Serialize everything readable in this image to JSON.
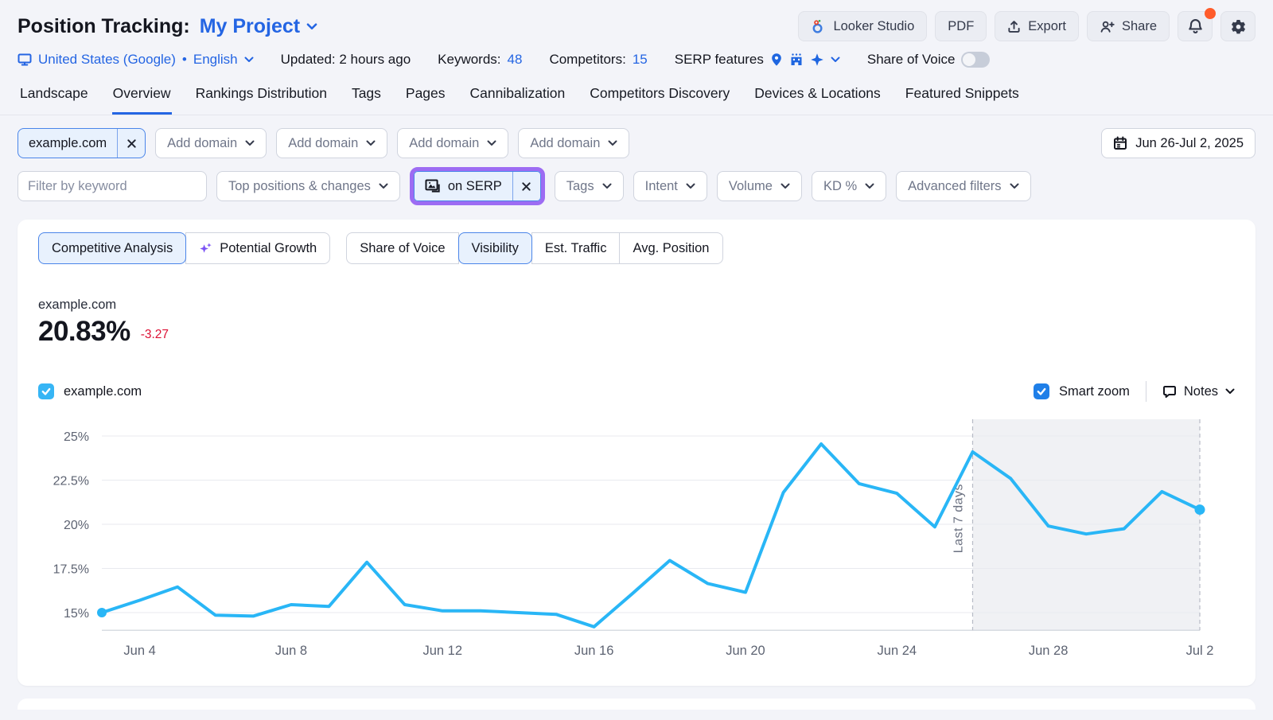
{
  "page": {
    "title": "Position Tracking:",
    "project_name": "My Project"
  },
  "header_actions": {
    "looker_studio": "Looker Studio",
    "pdf": "PDF",
    "export": "Export",
    "share": "Share"
  },
  "meta": {
    "location": "United States (Google)",
    "separator": "•",
    "language": "English",
    "updated_label": "Updated: 2 hours ago",
    "keywords_label": "Keywords:",
    "keywords_value": "48",
    "competitors_label": "Competitors:",
    "competitors_value": "15",
    "serp_features_label": "SERP features",
    "share_of_voice_label": "Share of Voice"
  },
  "tabs": [
    "Landscape",
    "Overview",
    "Rankings Distribution",
    "Tags",
    "Pages",
    "Cannibalization",
    "Competitors Discovery",
    "Devices & Locations",
    "Featured Snippets"
  ],
  "active_tab": "Overview",
  "filters": {
    "domain_chip": "example.com",
    "add_domain_labels": [
      "Add domain",
      "Add domain",
      "Add domain",
      "Add domain"
    ],
    "date_range": "Jun 26-Jul 2, 2025",
    "keyword_placeholder": "Filter by keyword",
    "top_positions": "Top positions & changes",
    "serp_feature_chip": "on SERP",
    "tags": "Tags",
    "intent": "Intent",
    "volume": "Volume",
    "kd": "KD %",
    "advanced": "Advanced filters"
  },
  "views": {
    "competitive_analysis": "Competitive Analysis",
    "potential_growth": "Potential Growth",
    "share_of_voice": "Share of Voice",
    "visibility": "Visibility",
    "est_traffic": "Est. Traffic",
    "avg_position": "Avg. Position",
    "active_group1": "Competitive Analysis",
    "active_group2": "Visibility"
  },
  "metric": {
    "domain": "example.com",
    "value": "20.83%",
    "change": "-3.27"
  },
  "legend": {
    "series_label": "example.com",
    "smart_zoom_label": "Smart zoom",
    "notes_label": "Notes"
  },
  "colors": {
    "accent_blue": "#2465e3",
    "chip_blue_border": "#4a85e9",
    "chip_blue_bg": "#e8f1fd",
    "line_blue": "#29b6f6",
    "negative_red": "#dd1135",
    "highlight_purple": "#9d6cf3",
    "notification_orange": "#ff5c2b",
    "grid_gray": "#e8eaef",
    "axis_text": "#5d6372",
    "last7_fill": "#f0f1f4"
  },
  "icons": {
    "monitor": "device/monitor glyph",
    "chevron_down": "⌄",
    "looker_studio": "looker ring logo",
    "export": "upload arrow",
    "share": "person-plus",
    "bell": "notification bell",
    "gear": "settings cog",
    "pin": "location pin",
    "local_pack": "storefront building",
    "sparkle": "four-point star",
    "calendar": "calendar",
    "search": "magnifier",
    "serp_image": "image-on-serp frame",
    "notes": "speech bubble",
    "close": "✕",
    "check": "✓"
  },
  "chart_data": {
    "type": "line",
    "title": "example.com Visibility trend",
    "series_name": "example.com",
    "x": [
      "Jun 3",
      "Jun 4",
      "Jun 5",
      "Jun 6",
      "Jun 7",
      "Jun 8",
      "Jun 9",
      "Jun 10",
      "Jun 11",
      "Jun 12",
      "Jun 13",
      "Jun 14",
      "Jun 15",
      "Jun 16",
      "Jun 17",
      "Jun 18",
      "Jun 19",
      "Jun 20",
      "Jun 21",
      "Jun 22",
      "Jun 23",
      "Jun 24",
      "Jun 25",
      "Jun 26",
      "Jun 27",
      "Jun 28",
      "Jun 29",
      "Jun 30",
      "Jul 1",
      "Jul 2"
    ],
    "values": [
      15.0,
      15.7,
      16.45,
      14.85,
      14.8,
      15.45,
      15.35,
      17.85,
      15.45,
      15.1,
      15.1,
      15.0,
      14.9,
      14.2,
      16.05,
      17.95,
      16.65,
      16.15,
      21.8,
      24.55,
      22.3,
      21.75,
      19.85,
      24.1,
      22.6,
      19.9,
      19.45,
      19.75,
      21.85,
      20.83
    ],
    "unit": "%",
    "ylim": [
      14,
      26
    ],
    "ytick_values": [
      25,
      22.5,
      20,
      17.5,
      15
    ],
    "ytick_labels": [
      "25%",
      "22.5%",
      "20%",
      "17.5%",
      "15%"
    ],
    "xtick_indices": [
      1,
      5,
      9,
      13,
      17,
      21,
      25,
      29
    ],
    "xtick_labels": [
      "Jun 4",
      "Jun 8",
      "Jun 12",
      "Jun 16",
      "Jun 20",
      "Jun 24",
      "Jun 28",
      "Jul 2"
    ],
    "annotation": {
      "label": "Last 7 days",
      "start_index": 23,
      "end_index": 29
    },
    "grid": true,
    "legend_position": "top-left",
    "start_dot_value": 15.0,
    "end_dot_value": 20.83
  }
}
